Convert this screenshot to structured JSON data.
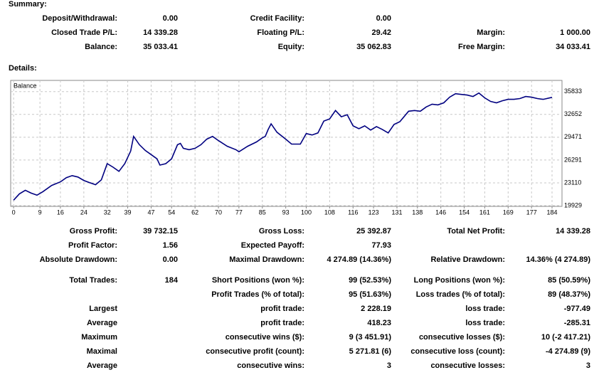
{
  "summary": {
    "title": "Summary:",
    "rows": [
      [
        "Deposit/Withdrawal:",
        "0.00",
        "Credit Facility:",
        "0.00",
        null,
        null
      ],
      [
        "Closed Trade P/L:",
        "14 339.28",
        "Floating P/L:",
        "29.42",
        "Margin:",
        "1 000.00"
      ],
      [
        "Balance:",
        "35 033.41",
        "Equity:",
        "35 062.83",
        "Free Margin:",
        "34 033.41"
      ]
    ]
  },
  "details": {
    "title": "Details:",
    "rows": [
      [
        "Gross Profit:",
        "39 732.15",
        "Gross Loss:",
        "25 392.87",
        "Total Net Profit:",
        "14 339.28"
      ],
      [
        "Profit Factor:",
        "1.56",
        "Expected Payoff:",
        "77.93",
        null,
        null
      ],
      [
        "Absolute Drawdown:",
        "0.00",
        "Maximal Drawdown:",
        "4 274.89 (14.36%)",
        "Relative Drawdown:",
        "14.36% (4 274.89)"
      ],
      [
        "Total Trades:",
        "184",
        "Short Positions (won %):",
        "99 (52.53%)",
        "Long Positions (won %):",
        "85 (50.59%)"
      ],
      [
        null,
        null,
        "Profit Trades (% of total):",
        "95 (51.63%)",
        "Loss trades (% of total):",
        "89 (48.37%)"
      ],
      [
        "Largest",
        null,
        "profit trade:",
        "2 228.19",
        "loss trade:",
        "-977.49"
      ],
      [
        "Average",
        null,
        "profit trade:",
        "418.23",
        "loss trade:",
        "-285.31"
      ],
      [
        "Maximum",
        null,
        "consecutive wins ($):",
        "9 (3 451.91)",
        "consecutive losses ($):",
        "10 (-2 417.21)"
      ],
      [
        "Maximal",
        null,
        "consecutive profit (count):",
        "5 271.81 (6)",
        "consecutive loss (count):",
        "-4 274.89 (9)"
      ],
      [
        "Average",
        null,
        "consecutive wins:",
        "3",
        "consecutive losses:",
        "3"
      ]
    ]
  },
  "chart_data": {
    "type": "line",
    "x": [
      0,
      2,
      4,
      6,
      8,
      10,
      13,
      16,
      18,
      20,
      22,
      24,
      26,
      28,
      30,
      32,
      34,
      36,
      38,
      40,
      41,
      43,
      45,
      47,
      49,
      50,
      52,
      54,
      56,
      57,
      58,
      60,
      62,
      64,
      66,
      68,
      70,
      73,
      76,
      77,
      80,
      83,
      85,
      86,
      87,
      88,
      90,
      93,
      95,
      98,
      100,
      102,
      104,
      106,
      108,
      110,
      112,
      114,
      116,
      118,
      120,
      122,
      124,
      126,
      128,
      130,
      132,
      135,
      137,
      139,
      141,
      143,
      145,
      147,
      149,
      151,
      153,
      155,
      157,
      159,
      161,
      163,
      165,
      167,
      169,
      171,
      173,
      175,
      177,
      179,
      181,
      184
    ],
    "series": [
      {
        "name": "Balance",
        "color": "#000080",
        "values": [
          20694,
          21580,
          22070,
          21680,
          21390,
          21880,
          22750,
          23240,
          23830,
          24120,
          23920,
          23440,
          23140,
          22850,
          23530,
          25780,
          25290,
          24710,
          25780,
          27540,
          29590,
          28420,
          27630,
          27050,
          26460,
          25590,
          25780,
          26460,
          28420,
          28610,
          27930,
          27730,
          27930,
          28420,
          29200,
          29590,
          29000,
          28220,
          27730,
          27440,
          28220,
          28810,
          29390,
          29590,
          30560,
          31340,
          30170,
          29200,
          28510,
          28510,
          29980,
          29780,
          30070,
          31730,
          32030,
          33200,
          32320,
          32610,
          31050,
          30660,
          31050,
          30470,
          30950,
          30560,
          30070,
          31250,
          31640,
          33100,
          33200,
          33100,
          33690,
          34080,
          33980,
          34270,
          35050,
          35540,
          35440,
          35350,
          35150,
          35640,
          34960,
          34470,
          34270,
          34560,
          34760,
          34760,
          34860,
          35150,
          35050,
          34860,
          34760,
          35033
        ]
      }
    ],
    "xlim": [
      -1,
      187.4
    ],
    "ylim": [
      19831,
      37395
    ],
    "xticks": [
      0,
      9,
      16,
      24,
      32,
      39,
      47,
      54,
      62,
      70,
      77,
      85,
      93,
      100,
      108,
      116,
      123,
      131,
      138,
      146,
      154,
      161,
      169,
      177,
      184
    ],
    "yticks": [
      19929,
      23110,
      26291,
      29471,
      32652,
      35833
    ],
    "y_axis_side": "right",
    "grid": true
  }
}
